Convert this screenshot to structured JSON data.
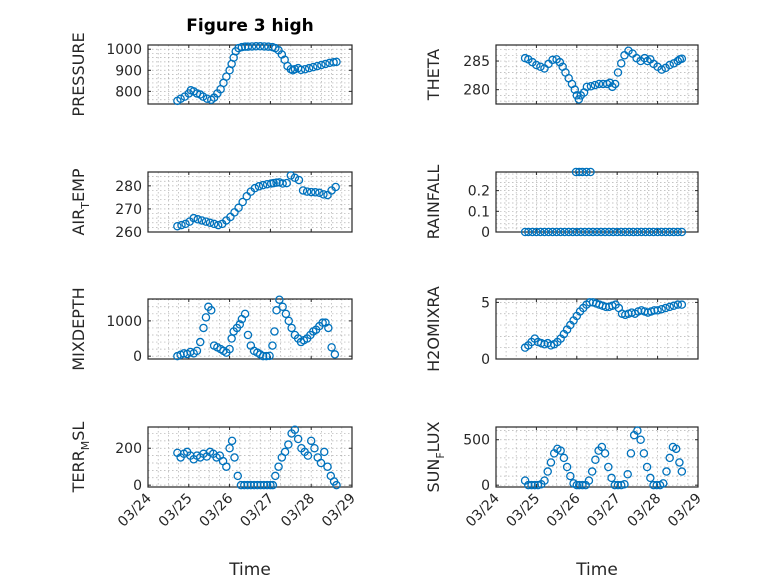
{
  "colors": {
    "marker": "#0072bd",
    "axis": "#262626",
    "grid": "#b0b0b0"
  },
  "chart_data": [
    {
      "type": "scatter",
      "title": "Figure 3 high",
      "ylabel_parts": [
        "PRESSURE"
      ],
      "ylim": [
        740,
        1020
      ],
      "yticks": [
        800,
        900,
        1000
      ],
      "xlim": [
        0,
        5
      ],
      "xticklabels": [],
      "xlabel": "",
      "x": [
        0.72,
        0.8,
        0.9,
        1.0,
        1.05,
        1.12,
        1.2,
        1.28,
        1.35,
        1.45,
        1.55,
        1.62,
        1.7,
        1.78,
        1.85,
        1.92,
        2.0,
        2.05,
        2.1,
        2.15,
        2.22,
        2.3,
        2.38,
        2.45,
        2.55,
        2.65,
        2.75,
        2.85,
        2.95,
        3.05,
        3.12,
        3.2,
        3.28,
        3.35,
        3.42,
        3.5,
        3.55,
        3.6,
        3.68,
        3.75,
        3.85,
        3.95,
        4.05,
        4.15,
        4.25,
        4.35,
        4.45,
        4.55,
        4.62
      ],
      "y": [
        755,
        765,
        775,
        790,
        805,
        800,
        790,
        785,
        775,
        765,
        760,
        770,
        790,
        810,
        840,
        870,
        900,
        930,
        960,
        990,
        1005,
        1010,
        1012,
        1012,
        1013,
        1014,
        1014,
        1013,
        1012,
        1010,
        1005,
        995,
        975,
        950,
        920,
        905,
        900,
        905,
        910,
        902,
        905,
        910,
        915,
        920,
        925,
        930,
        935,
        938,
        940
      ]
    },
    {
      "type": "scatter",
      "title": "",
      "ylabel_parts": [
        "THETA"
      ],
      "ylim": [
        277.5,
        287.8
      ],
      "yticks": [
        280,
        285
      ],
      "xlim": [
        0,
        5
      ],
      "xticklabels": [],
      "xlabel": "",
      "x": [
        0.72,
        0.8,
        0.9,
        1.0,
        1.1,
        1.2,
        1.3,
        1.4,
        1.5,
        1.58,
        1.65,
        1.72,
        1.8,
        1.88,
        1.95,
        2.0,
        2.05,
        2.1,
        2.18,
        2.25,
        2.35,
        2.45,
        2.55,
        2.65,
        2.75,
        2.82,
        2.88,
        2.95,
        3.02,
        3.1,
        3.18,
        3.28,
        3.38,
        3.48,
        3.58,
        3.68,
        3.75,
        3.82,
        3.9,
        4.0,
        4.1,
        4.2,
        4.3,
        4.4,
        4.5,
        4.55,
        4.6
      ],
      "y": [
        285.5,
        285.3,
        284.8,
        284.3,
        284,
        283.7,
        284.5,
        285.2,
        285.3,
        284.8,
        284,
        283,
        282,
        281,
        280,
        279,
        278.3,
        279,
        279.5,
        280.5,
        280.6,
        280.8,
        281,
        281,
        281,
        281.2,
        280.5,
        281,
        283,
        284.6,
        286,
        286.8,
        286.3,
        285.5,
        285,
        285.5,
        285,
        285.3,
        284.5,
        284,
        283.5,
        283.8,
        284.3,
        284.6,
        285,
        285.3,
        285.4
      ]
    },
    {
      "type": "scatter",
      "title": "",
      "ylabel_parts": [
        "AIR",
        "T",
        "EMP"
      ],
      "ylim": [
        260,
        286
      ],
      "yticks": [
        260,
        270,
        280
      ],
      "xlim": [
        0,
        5
      ],
      "xticklabels": [],
      "xlabel": "",
      "x": [
        0.72,
        0.82,
        0.92,
        1.02,
        1.12,
        1.22,
        1.32,
        1.42,
        1.52,
        1.62,
        1.72,
        1.82,
        1.92,
        2.02,
        2.12,
        2.22,
        2.32,
        2.42,
        2.52,
        2.62,
        2.72,
        2.82,
        2.92,
        3.02,
        3.08,
        3.15,
        3.22,
        3.3,
        3.4,
        3.5,
        3.6,
        3.7,
        3.8,
        3.9,
        4.0,
        4.1,
        4.2,
        4.3,
        4.4,
        4.5,
        4.6
      ],
      "y": [
        262.5,
        263,
        263.5,
        264.5,
        266,
        265.5,
        265,
        264.5,
        264,
        263.5,
        263,
        263.5,
        265,
        266.5,
        268.5,
        270.5,
        273,
        275.5,
        277.5,
        279,
        279.8,
        280.3,
        280.7,
        281,
        281.2,
        281.4,
        281.5,
        281,
        281.2,
        284.5,
        283.5,
        282.5,
        278,
        277.5,
        277.3,
        277.2,
        277,
        276.3,
        276,
        278,
        279.5
      ]
    },
    {
      "type": "scatter",
      "title": "",
      "ylabel_parts": [
        "RAINFALL"
      ],
      "ylim": [
        0,
        0.29
      ],
      "yticks": [
        0,
        0.1,
        0.2
      ],
      "yticklabels": [
        "0",
        "0.1",
        "0.2"
      ],
      "xlim": [
        0,
        5
      ],
      "xticklabels": [],
      "xlabel": "",
      "x": [
        0.72,
        0.8,
        0.9,
        1.0,
        1.1,
        1.2,
        1.3,
        1.4,
        1.5,
        1.6,
        1.7,
        1.8,
        1.9,
        2.0,
        2.1,
        2.2,
        2.3,
        2.4,
        2.5,
        2.6,
        2.7,
        2.8,
        2.9,
        3.0,
        3.1,
        3.2,
        3.3,
        3.4,
        3.5,
        3.6,
        3.7,
        3.8,
        3.9,
        4.0,
        4.1,
        4.2,
        4.3,
        4.4,
        4.5,
        4.6,
        1.98,
        2.06,
        2.14,
        2.24,
        2.34
      ],
      "y": [
        0,
        0,
        0,
        0,
        0,
        0,
        0,
        0,
        0,
        0,
        0,
        0,
        0,
        0,
        0,
        0,
        0,
        0,
        0,
        0,
        0,
        0,
        0,
        0,
        0,
        0,
        0,
        0,
        0,
        0,
        0,
        0,
        0,
        0,
        0,
        0,
        0,
        0,
        0,
        0,
        0.29,
        0.29,
        0.29,
        0.29,
        0.29
      ]
    },
    {
      "type": "scatter",
      "title": "",
      "ylabel_parts": [
        "MIXDEPTH"
      ],
      "ylim": [
        -80,
        1620
      ],
      "yticks": [
        0,
        1000
      ],
      "xlim": [
        0,
        5
      ],
      "xticklabels": [],
      "xlabel": "",
      "x": [
        0.72,
        0.8,
        0.88,
        0.96,
        1.04,
        1.12,
        1.2,
        1.28,
        1.36,
        1.42,
        1.48,
        1.55,
        1.62,
        1.7,
        1.78,
        1.85,
        1.92,
        2.0,
        2.05,
        2.1,
        2.18,
        2.25,
        2.3,
        2.38,
        2.45,
        2.52,
        2.6,
        2.68,
        2.75,
        2.82,
        2.9,
        2.98,
        3.05,
        3.1,
        3.15,
        3.22,
        3.3,
        3.38,
        3.45,
        3.52,
        3.6,
        3.68,
        3.75,
        3.82,
        3.9,
        3.98,
        4.05,
        4.12,
        4.2,
        4.28,
        4.35,
        4.42,
        4.5,
        4.58
      ],
      "y": [
        0,
        40,
        80,
        60,
        120,
        80,
        150,
        400,
        800,
        1100,
        1400,
        1300,
        300,
        250,
        200,
        150,
        100,
        200,
        500,
        700,
        800,
        900,
        1050,
        1200,
        600,
        300,
        150,
        100,
        50,
        0,
        0,
        10,
        300,
        700,
        1300,
        1600,
        1400,
        1200,
        1000,
        800,
        600,
        500,
        400,
        450,
        500,
        600,
        700,
        750,
        850,
        950,
        950,
        800,
        250,
        50
      ]
    },
    {
      "type": "scatter",
      "title": "",
      "ylabel_parts": [
        "H2OMIXRA"
      ],
      "ylim": [
        0,
        5.3
      ],
      "yticks": [
        0,
        5
      ],
      "xlim": [
        0,
        5
      ],
      "xticklabels": [],
      "xlabel": "",
      "x": [
        0.72,
        0.8,
        0.88,
        0.96,
        1.04,
        1.12,
        1.2,
        1.28,
        1.36,
        1.44,
        1.52,
        1.6,
        1.68,
        1.76,
        1.84,
        1.92,
        2.0,
        2.08,
        2.16,
        2.24,
        2.32,
        2.4,
        2.48,
        2.56,
        2.64,
        2.72,
        2.8,
        2.88,
        2.96,
        3.04,
        3.12,
        3.2,
        3.28,
        3.36,
        3.44,
        3.52,
        3.6,
        3.68,
        3.76,
        3.84,
        3.92,
        4.0,
        4.1,
        4.2,
        4.3,
        4.4,
        4.5,
        4.6
      ],
      "y": [
        1.0,
        1.2,
        1.5,
        1.8,
        1.5,
        1.4,
        1.3,
        1.4,
        1.2,
        1.3,
        1.5,
        1.8,
        2.2,
        2.6,
        3.0,
        3.4,
        3.8,
        4.2,
        4.5,
        4.8,
        5.0,
        5.0,
        4.9,
        4.8,
        4.7,
        4.6,
        4.6,
        4.7,
        4.8,
        4.5,
        4.0,
        3.9,
        4.0,
        4.1,
        4.0,
        4.2,
        4.3,
        4.2,
        4.1,
        4.2,
        4.3,
        4.3,
        4.4,
        4.5,
        4.6,
        4.7,
        4.8,
        4.8
      ]
    },
    {
      "type": "scatter",
      "title": "",
      "ylabel_parts": [
        "TERR",
        "M",
        "SL"
      ],
      "ylim": [
        -10,
        315
      ],
      "yticks": [
        0,
        200
      ],
      "xlim": [
        0,
        5
      ],
      "xticklabels": [
        "03/24",
        "03/25",
        "03/26",
        "03/27",
        "03/28",
        "03/29"
      ],
      "xlabel": "Time",
      "x": [
        0.72,
        0.8,
        0.88,
        0.96,
        1.04,
        1.12,
        1.2,
        1.28,
        1.36,
        1.44,
        1.52,
        1.6,
        1.68,
        1.76,
        1.84,
        1.92,
        2.0,
        2.06,
        2.12,
        2.2,
        2.28,
        2.36,
        2.44,
        2.52,
        2.6,
        2.68,
        2.76,
        2.84,
        2.92,
        3.0,
        3.06,
        3.12,
        3.2,
        3.28,
        3.36,
        3.44,
        3.52,
        3.6,
        3.68,
        3.76,
        3.84,
        3.92,
        4.0,
        4.08,
        4.16,
        4.24,
        4.32,
        4.4,
        4.48,
        4.56,
        4.62
      ],
      "y": [
        175,
        150,
        170,
        180,
        160,
        140,
        160,
        150,
        170,
        155,
        180,
        170,
        150,
        160,
        130,
        100,
        200,
        240,
        150,
        50,
        0,
        0,
        0,
        0,
        0,
        0,
        0,
        0,
        0,
        0,
        0,
        50,
        100,
        150,
        180,
        220,
        280,
        300,
        250,
        200,
        180,
        160,
        240,
        200,
        150,
        120,
        180,
        100,
        50,
        20,
        0
      ]
    },
    {
      "type": "scatter",
      "title": "",
      "ylabel_parts": [
        "SUN",
        "F",
        "LUX"
      ],
      "ylim": [
        -20,
        640
      ],
      "yticks": [
        0,
        500
      ],
      "xlim": [
        0,
        5
      ],
      "xticklabels": [
        "03/24",
        "03/25",
        "03/26",
        "03/27",
        "03/28",
        "03/29"
      ],
      "xlabel": "Time",
      "x": [
        0.72,
        0.8,
        0.88,
        0.96,
        1.04,
        1.12,
        1.2,
        1.28,
        1.36,
        1.44,
        1.52,
        1.6,
        1.68,
        1.76,
        1.84,
        1.92,
        2.0,
        2.06,
        2.14,
        2.22,
        2.3,
        2.38,
        2.46,
        2.54,
        2.62,
        2.7,
        2.78,
        2.86,
        2.94,
        3.02,
        3.1,
        3.18,
        3.26,
        3.34,
        3.42,
        3.5,
        3.58,
        3.66,
        3.74,
        3.82,
        3.9,
        3.98,
        4.06,
        4.14,
        4.22,
        4.3,
        4.38,
        4.46,
        4.54,
        4.6
      ],
      "y": [
        50,
        0,
        0,
        0,
        0,
        10,
        50,
        150,
        250,
        350,
        400,
        380,
        300,
        200,
        100,
        20,
        0,
        0,
        0,
        0,
        50,
        150,
        280,
        380,
        420,
        350,
        200,
        80,
        0,
        0,
        0,
        10,
        120,
        350,
        550,
        600,
        500,
        350,
        200,
        80,
        0,
        0,
        0,
        20,
        150,
        300,
        420,
        400,
        250,
        150
      ]
    }
  ]
}
